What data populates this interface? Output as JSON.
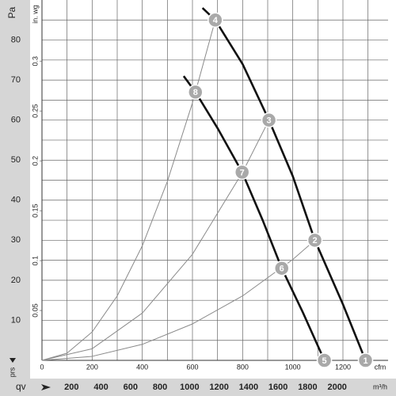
{
  "chart_data": {
    "type": "line",
    "y_label": "Pa",
    "y2_label": "in. wg",
    "x_unit": "cfm",
    "x2_unit": "m³/h",
    "y_marker": "prs",
    "x_marker": "qv",
    "xlim": [
      0,
      1380
    ],
    "xticks": [
      0,
      200,
      400,
      600,
      800,
      1000,
      1200
    ],
    "x_minor_ticks": [
      100,
      300,
      500,
      700,
      900,
      1100,
      1300
    ],
    "x2lim": [
      0,
      2345
    ],
    "x2ticks": [
      200,
      400,
      600,
      800,
      1000,
      1200,
      1400,
      1600,
      1800,
      2000
    ],
    "ylim": [
      0,
      90
    ],
    "yticks": [
      10,
      20,
      30,
      40,
      50,
      60,
      70,
      80
    ],
    "y_minor_ticks": [
      5,
      15,
      25,
      35,
      45,
      55,
      65,
      75,
      85
    ],
    "y2lim": [
      0,
      0.3613
    ],
    "y2ticks": [
      0.05,
      0.1,
      0.15,
      0.2,
      0.25,
      0.3
    ],
    "grid": true,
    "series": [
      {
        "color": "#111111",
        "line_width": 2.6,
        "x": [
          640,
          691,
          800,
          905,
          1000,
          1088,
          1200,
          1290
        ],
        "y": [
          88,
          85,
          74,
          60,
          46,
          30,
          14,
          0
        ]
      },
      {
        "color": "#111111",
        "line_width": 2.6,
        "x": [
          565,
          612,
          700,
          798,
          880,
          956,
          1040,
          1126
        ],
        "y": [
          71,
          67,
          58,
          47,
          35,
          23,
          12,
          0
        ]
      },
      {
        "color": "#8a8a8a",
        "line_width": 1,
        "x": [
          0,
          100,
          200,
          300,
          400,
          500,
          600,
          691
        ],
        "y": [
          0,
          1.8,
          7.1,
          16.1,
          28.6,
          44.7,
          64.3,
          85
        ]
      },
      {
        "color": "#8a8a8a",
        "line_width": 1,
        "x": [
          0,
          200,
          400,
          600,
          800,
          905
        ],
        "y": [
          0,
          2.9,
          11.8,
          26.5,
          47,
          60
        ]
      },
      {
        "color": "#8a8a8a",
        "line_width": 1,
        "x": [
          0,
          200,
          400,
          600,
          800,
          1000,
          1088
        ],
        "y": [
          0,
          1,
          4,
          9.1,
          16.1,
          25.2,
          30
        ]
      }
    ],
    "points": [
      {
        "label": "1",
        "x": 1290,
        "y": 0
      },
      {
        "label": "2",
        "x": 1088,
        "y": 30
      },
      {
        "label": "3",
        "x": 905,
        "y": 60
      },
      {
        "label": "4",
        "x": 691,
        "y": 85
      },
      {
        "label": "5",
        "x": 1126,
        "y": 0
      },
      {
        "label": "6",
        "x": 956,
        "y": 23
      },
      {
        "label": "7",
        "x": 798,
        "y": 47
      },
      {
        "label": "8",
        "x": 612,
        "y": 67
      }
    ]
  }
}
